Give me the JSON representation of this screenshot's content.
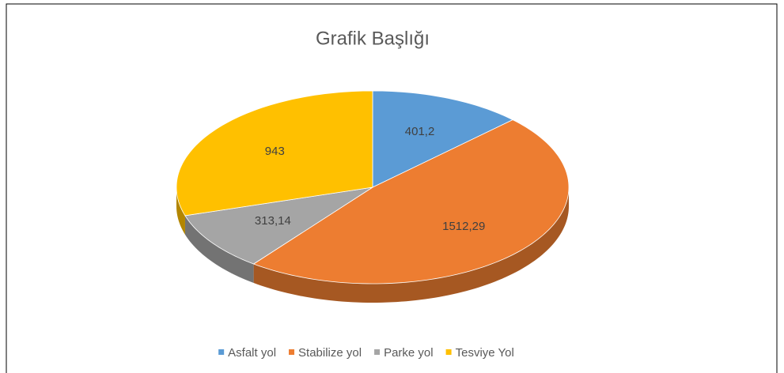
{
  "chart_data": {
    "type": "pie",
    "title": "Grafik Başlığı",
    "categories": [
      "Asfalt yol",
      "Stabilize yol",
      "Parke yol",
      "Tesviye Yol"
    ],
    "values": [
      401.2,
      1512.29,
      313.14,
      943
    ],
    "value_labels": [
      "401,2",
      "1512,29",
      "313,14",
      "943"
    ],
    "colors": [
      "#5b9bd5",
      "#ed7d31",
      "#a5a5a5",
      "#ffc000"
    ],
    "legend": "bottom"
  }
}
